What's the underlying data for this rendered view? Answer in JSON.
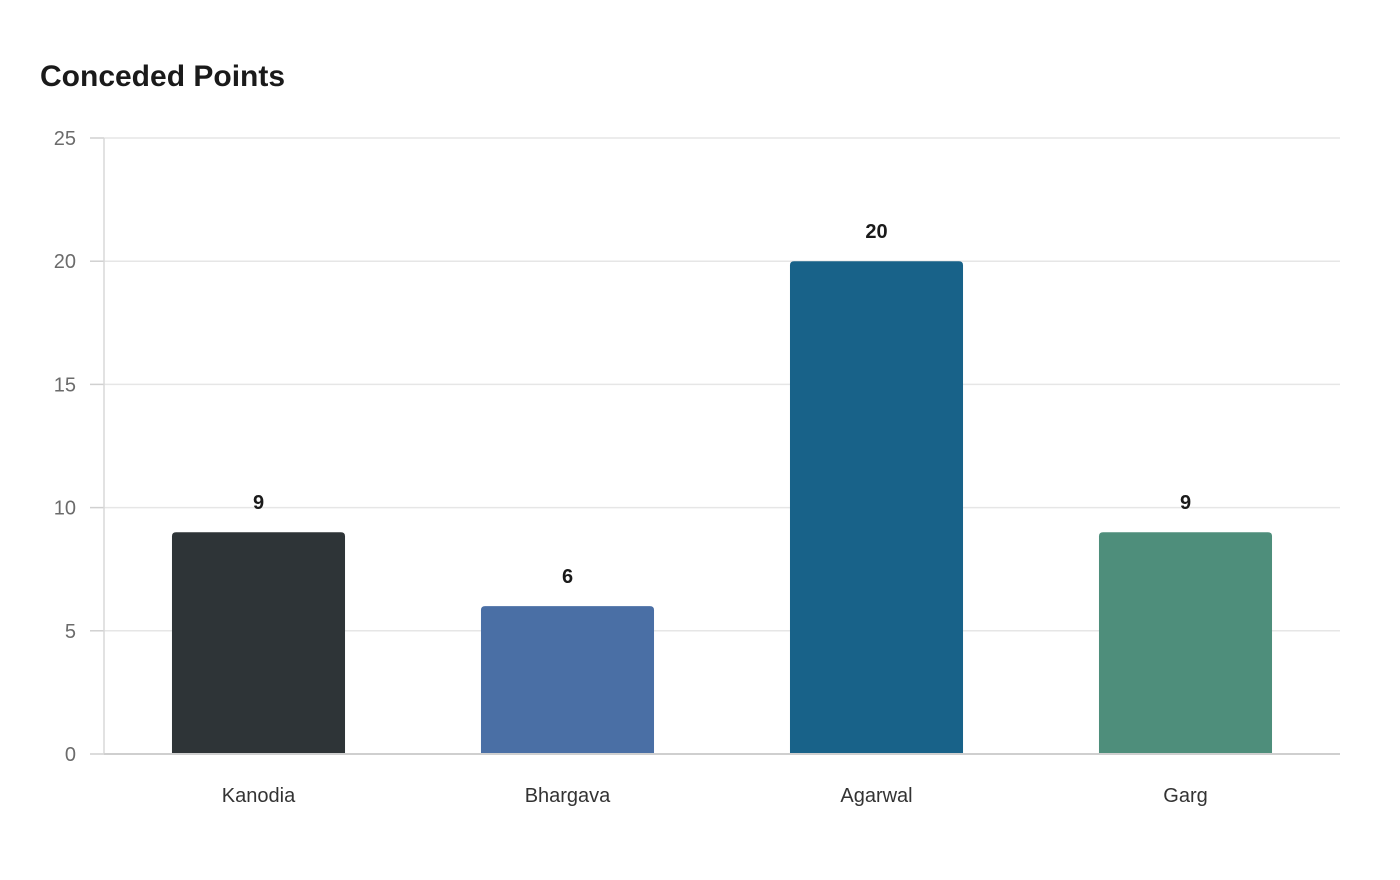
{
  "chart_data": {
    "type": "bar",
    "title": "Conceded Points",
    "xlabel": "",
    "ylabel": "",
    "categories": [
      "Kanodia",
      "Bhargava",
      "Agarwal",
      "Garg"
    ],
    "values": [
      9,
      6,
      20,
      9
    ],
    "colors": [
      "#2e3437",
      "#4a6fa5",
      "#186289",
      "#4e8e7b"
    ],
    "ylim": [
      0,
      25
    ],
    "yticks": [
      0,
      5,
      10,
      15,
      20,
      25
    ],
    "grid": true,
    "legend": "none"
  }
}
